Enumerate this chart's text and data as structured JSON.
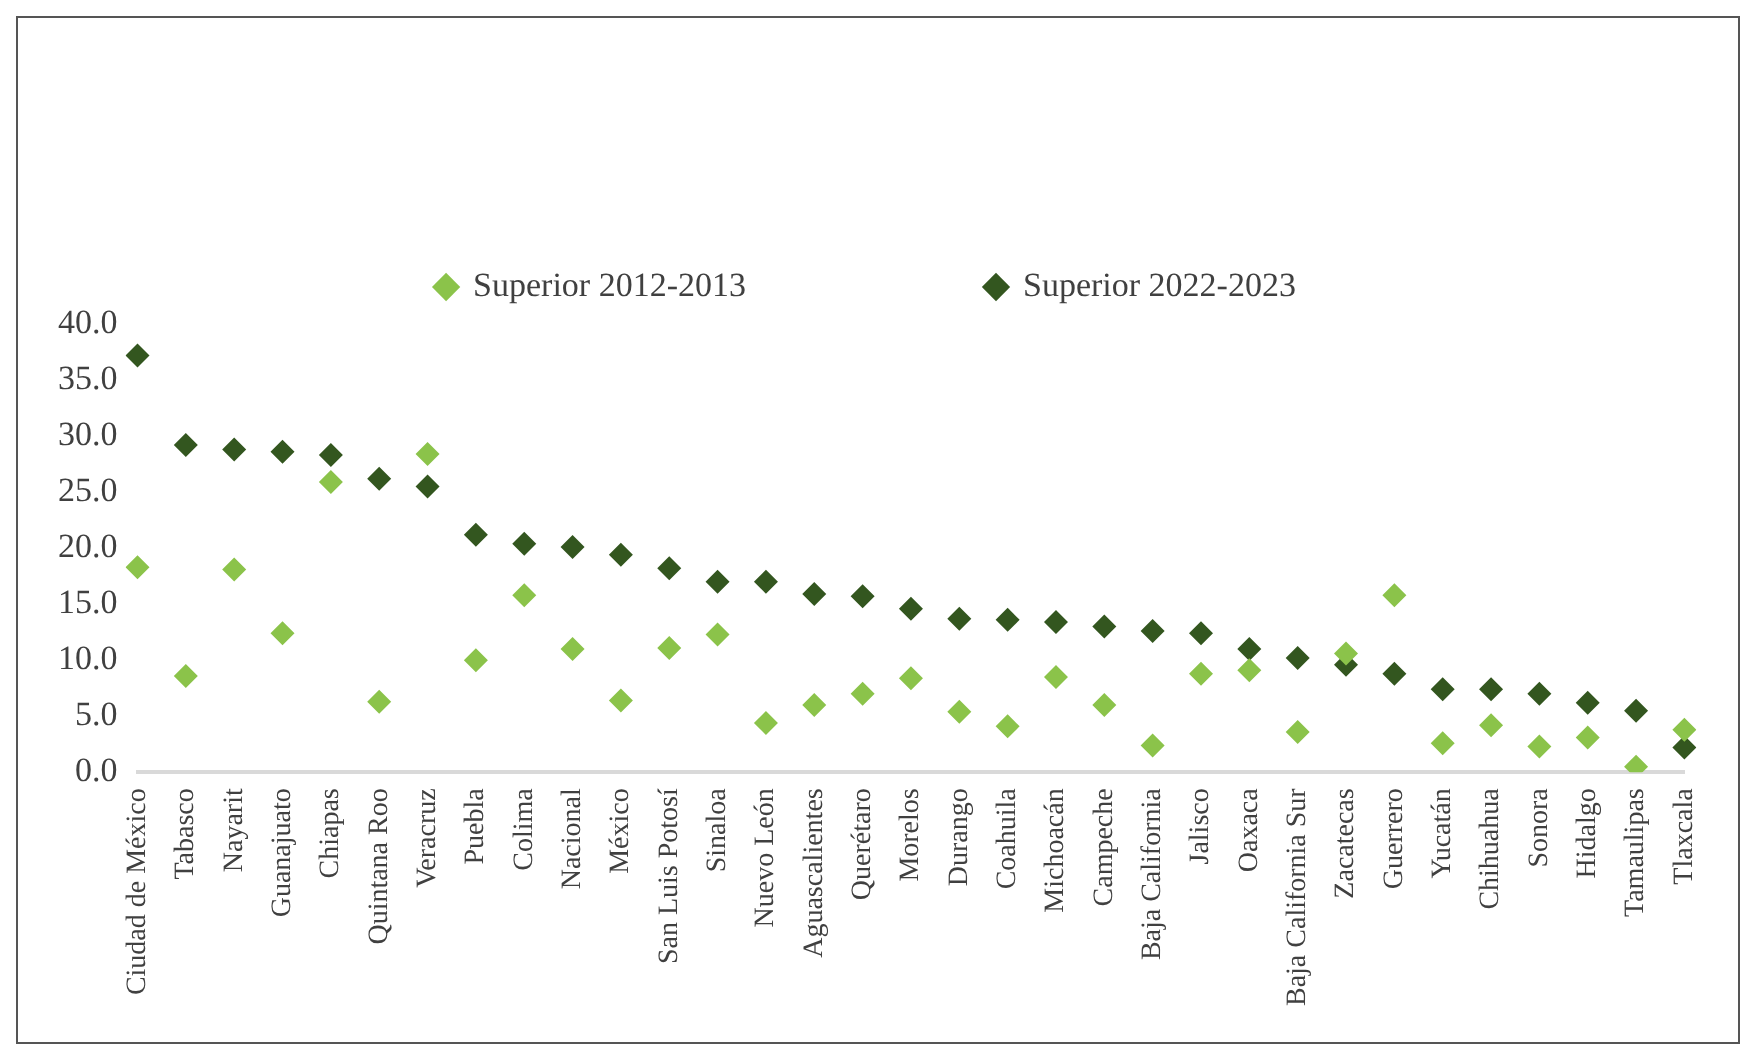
{
  "chart_data": {
    "type": "scatter",
    "categories": [
      "Ciudad de México",
      "Tabasco",
      "Nayarit",
      "Guanajuato",
      "Chiapas",
      "Quintana Roo",
      "Veracruz",
      "Puebla",
      "Colima",
      "Nacional",
      "México",
      "San Luis Potosí",
      "Sinaloa",
      "Nuevo León",
      "Aguascalientes",
      "Querétaro",
      "Morelos",
      "Durango",
      "Coahuila",
      "Michoacán",
      "Campeche",
      "Baja California",
      "Jalisco",
      "Oaxaca",
      "Baja California Sur",
      "Zacatecas",
      "Guerrero",
      "Yucatán",
      "Chihuahua",
      "Sonora",
      "Hidalgo",
      "Tamaulipas",
      "Tlaxcala"
    ],
    "series": [
      {
        "name": "Superior 2012-2013",
        "color": "#8bc34a",
        "values": [
          18.3,
          8.6,
          18.1,
          12.4,
          25.9,
          6.3,
          28.4,
          10.0,
          15.8,
          11.0,
          6.4,
          11.1,
          12.3,
          4.4,
          6.0,
          7.0,
          8.4,
          5.4,
          4.1,
          8.5,
          6.0,
          2.4,
          8.8,
          9.1,
          3.6,
          10.6,
          15.8,
          2.6,
          4.2,
          2.3,
          3.1,
          0.5,
          3.8
        ]
      },
      {
        "name": "Superior 2022-2023",
        "color": "#33561f",
        "values": [
          37.2,
          29.2,
          28.8,
          28.6,
          28.3,
          26.2,
          25.5,
          21.2,
          20.4,
          20.1,
          19.4,
          18.2,
          17.0,
          17.0,
          15.9,
          15.7,
          14.6,
          13.7,
          13.6,
          13.4,
          13.0,
          12.6,
          12.4,
          11.0,
          10.2,
          9.6,
          8.8,
          7.4,
          7.4,
          7.0,
          6.2,
          5.5,
          2.2
        ]
      }
    ],
    "ylim": [
      0,
      40
    ],
    "yticks": [
      {
        "value": 0,
        "label": "0.0"
      },
      {
        "value": 5,
        "label": "5.0"
      },
      {
        "value": 10,
        "label": "10.0"
      },
      {
        "value": 15,
        "label": "15.0"
      },
      {
        "value": 20,
        "label": "20.0"
      },
      {
        "value": 25,
        "label": "25.0"
      },
      {
        "value": 30,
        "label": "30.0"
      },
      {
        "value": 35,
        "label": "35.0"
      },
      {
        "value": 40,
        "label": "40.0"
      }
    ],
    "grid": false,
    "legend": "top",
    "marker": "diamond"
  }
}
